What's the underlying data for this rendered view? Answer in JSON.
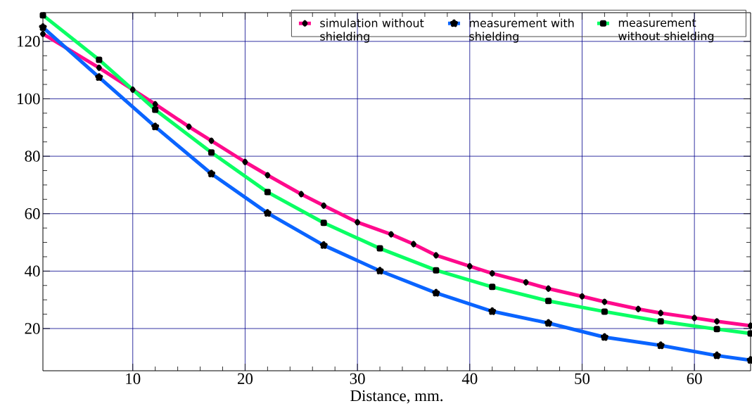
{
  "chart_data": {
    "type": "line",
    "xlabel": "Distance, mm.",
    "xlim": [
      2,
      65
    ],
    "ylim": [
      5.3,
      130
    ],
    "xticks": [
      10,
      20,
      30,
      40,
      50,
      60
    ],
    "yticks": [
      20,
      40,
      60,
      80,
      100,
      120
    ],
    "grid": true,
    "legend": "top right",
    "line_style": "solid",
    "series": [
      {
        "name": "simulation without shielding",
        "color": "#ff0a8c",
        "marker": "diamond",
        "x": [
          2,
          7,
          10,
          12,
          15,
          17,
          20,
          22,
          25,
          27,
          30,
          33,
          35,
          37,
          40,
          42,
          45,
          47,
          50,
          52,
          55,
          57,
          60,
          62,
          65
        ],
        "values": [
          122.6,
          110.8,
          103.2,
          98.1,
          90.3,
          85.4,
          78.0,
          73.4,
          66.8,
          62.8,
          57.0,
          52.8,
          49.4,
          45.5,
          41.7,
          39.2,
          36.1,
          33.9,
          31.2,
          29.3,
          26.8,
          25.4,
          23.7,
          22.5,
          21.0
        ]
      },
      {
        "name": "measurement with shielding",
        "color": "#0a64ff",
        "marker": "star",
        "x": [
          2,
          7,
          12,
          17,
          22,
          27,
          32,
          37,
          42,
          47,
          52,
          57,
          62,
          65
        ],
        "values": [
          124.9,
          107.5,
          90.3,
          73.9,
          60.2,
          49.0,
          40.1,
          32.4,
          26.0,
          21.9,
          17.0,
          14.1,
          10.6,
          9.0
        ]
      },
      {
        "name": "measurement without shielding",
        "color": "#0aff64",
        "marker": "square",
        "x": [
          2,
          7,
          12,
          17,
          22,
          27,
          32,
          37,
          42,
          47,
          52,
          57,
          62,
          65
        ],
        "values": [
          129.1,
          113.6,
          96.2,
          81.3,
          67.5,
          56.8,
          47.9,
          40.3,
          34.5,
          29.6,
          25.9,
          22.5,
          19.8,
          18.3
        ]
      }
    ]
  }
}
